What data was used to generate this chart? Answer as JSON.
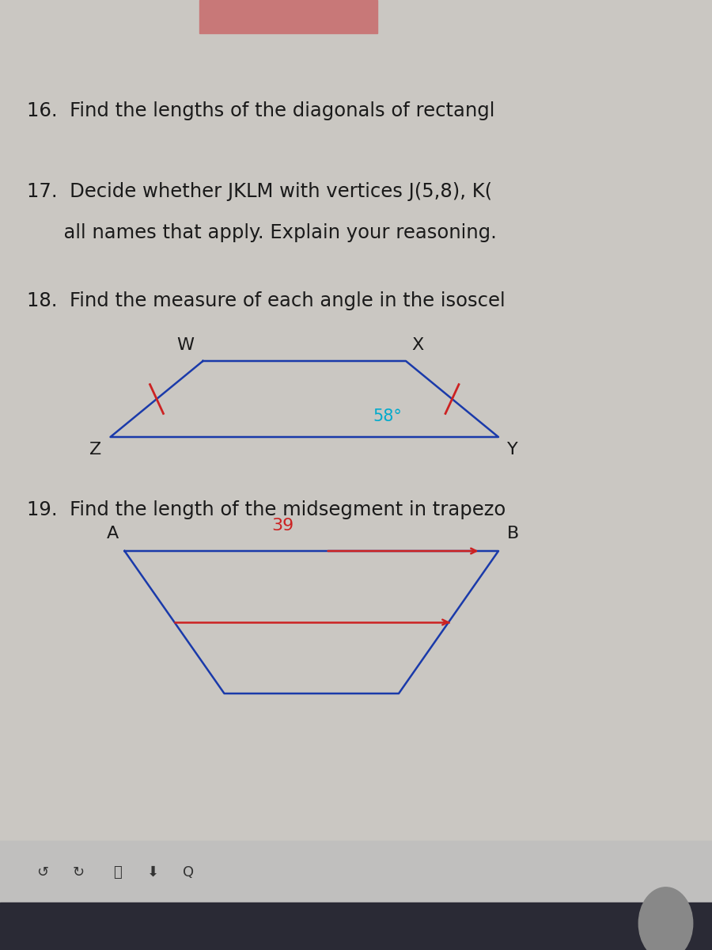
{
  "bg_color": "#cac7c2",
  "top_bar_color": "#c87878",
  "text_color": "#1a1a1a",
  "line16": "16.  Find the lengths of the diagonals of rectangl",
  "line17a": "17.  Decide whether JKLM with vertices J(5,8), K(",
  "line17b": "      all names that apply. Explain your reasoning.",
  "line18": "18.  Find the measure of each angle in the isoscel",
  "line19": "19.  Find the length of the midsegment in trapezo",
  "trap1_label_W": "W",
  "trap1_label_X": "X",
  "trap1_label_Z": "Z",
  "trap1_label_Y": "Y",
  "trap1_angle_label": "58°",
  "trap1_angle_color": "#00aacc",
  "trap1_line_color": "#1a3aaa",
  "trap1_tick_color": "#cc2222",
  "trap2_label_A": "A",
  "trap2_label_B": "B",
  "trap2_seg_label": "39",
  "trap2_seg_color": "#cc2222",
  "trap2_line_color": "#1a3aaa",
  "bottom_toolbar_color": "#c0bfbe",
  "bottom_dark_color": "#2a2a35",
  "chrome_color": "#888888"
}
